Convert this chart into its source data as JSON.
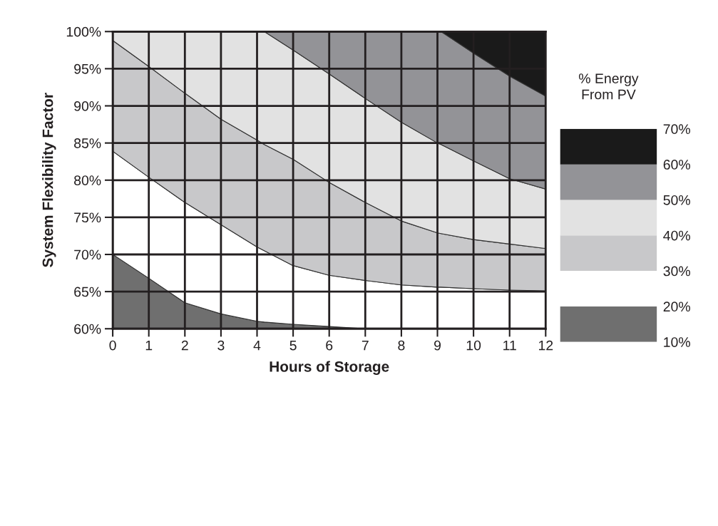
{
  "chart_data": {
    "type": "area",
    "xlabel": "Hours of Storage",
    "ylabel": "System Flexibility Factor",
    "x": [
      0,
      1,
      2,
      3,
      4,
      4.2,
      5,
      6,
      7,
      8,
      9,
      9.1,
      10,
      11,
      12
    ],
    "series": [
      {
        "color": "#6f6f6f",
        "values": [
          70,
          66.8,
          63.5,
          62.0,
          61.0,
          60.9,
          60.6,
          60.3,
          60,
          60,
          60,
          60,
          60,
          60,
          60
        ]
      },
      {
        "color": "#ffffff",
        "values": [
          83.9,
          80.4,
          77.0,
          74.0,
          71.0,
          70.5,
          68.5,
          67.2,
          66.5,
          65.9,
          65.6,
          65.6,
          65.4,
          65.2,
          65.1
        ]
      },
      {
        "color": "#c8c8ca",
        "values": [
          98.8,
          95.3,
          91.7,
          88.2,
          85.4,
          84.8,
          82.8,
          79.7,
          77.0,
          74.5,
          72.9,
          72.8,
          72.0,
          71.4,
          70.8
        ]
      },
      {
        "color": "#e2e2e2",
        "values": [
          100,
          100,
          100,
          100,
          100,
          100,
          97.5,
          94.3,
          91.0,
          87.8,
          85.0,
          84.8,
          82.6,
          80.2,
          78.8
        ]
      },
      {
        "color": "#939397",
        "values": [
          100,
          100,
          100,
          100,
          100,
          100,
          100,
          100,
          100,
          100,
          100,
          100,
          97.1,
          94.0,
          91.3
        ]
      },
      {
        "color": "#1a1a1a",
        "values": [
          100,
          100,
          100,
          100,
          100,
          100,
          100,
          100,
          100,
          100,
          100,
          100,
          100,
          100,
          100
        ]
      }
    ],
    "xlim": [
      0,
      12
    ],
    "ylim": [
      60,
      100
    ],
    "xticks": [
      0,
      1,
      2,
      3,
      4,
      5,
      6,
      7,
      8,
      9,
      10,
      11,
      12
    ],
    "yticks": [
      {
        "value": 60,
        "label": "60%"
      },
      {
        "value": 65,
        "label": "65%"
      },
      {
        "value": 70,
        "label": "70%"
      },
      {
        "value": 75,
        "label": "75%"
      },
      {
        "value": 80,
        "label": "80%"
      },
      {
        "value": 85,
        "label": "85%"
      },
      {
        "value": 90,
        "label": "90%"
      },
      {
        "value": 95,
        "label": "95%"
      },
      {
        "value": 100,
        "label": "100%"
      }
    ],
    "grid": true,
    "clabel": "% Energy\nFrom PV",
    "clim": [
      10,
      70
    ],
    "cticks": [
      {
        "value": 10,
        "label": "10%"
      },
      {
        "value": 20,
        "label": "20%"
      },
      {
        "value": 30,
        "label": "30%"
      },
      {
        "value": 40,
        "label": "40%"
      },
      {
        "value": 50,
        "label": "50%"
      },
      {
        "value": 60,
        "label": "60%"
      },
      {
        "value": 70,
        "label": "70%"
      }
    ]
  }
}
